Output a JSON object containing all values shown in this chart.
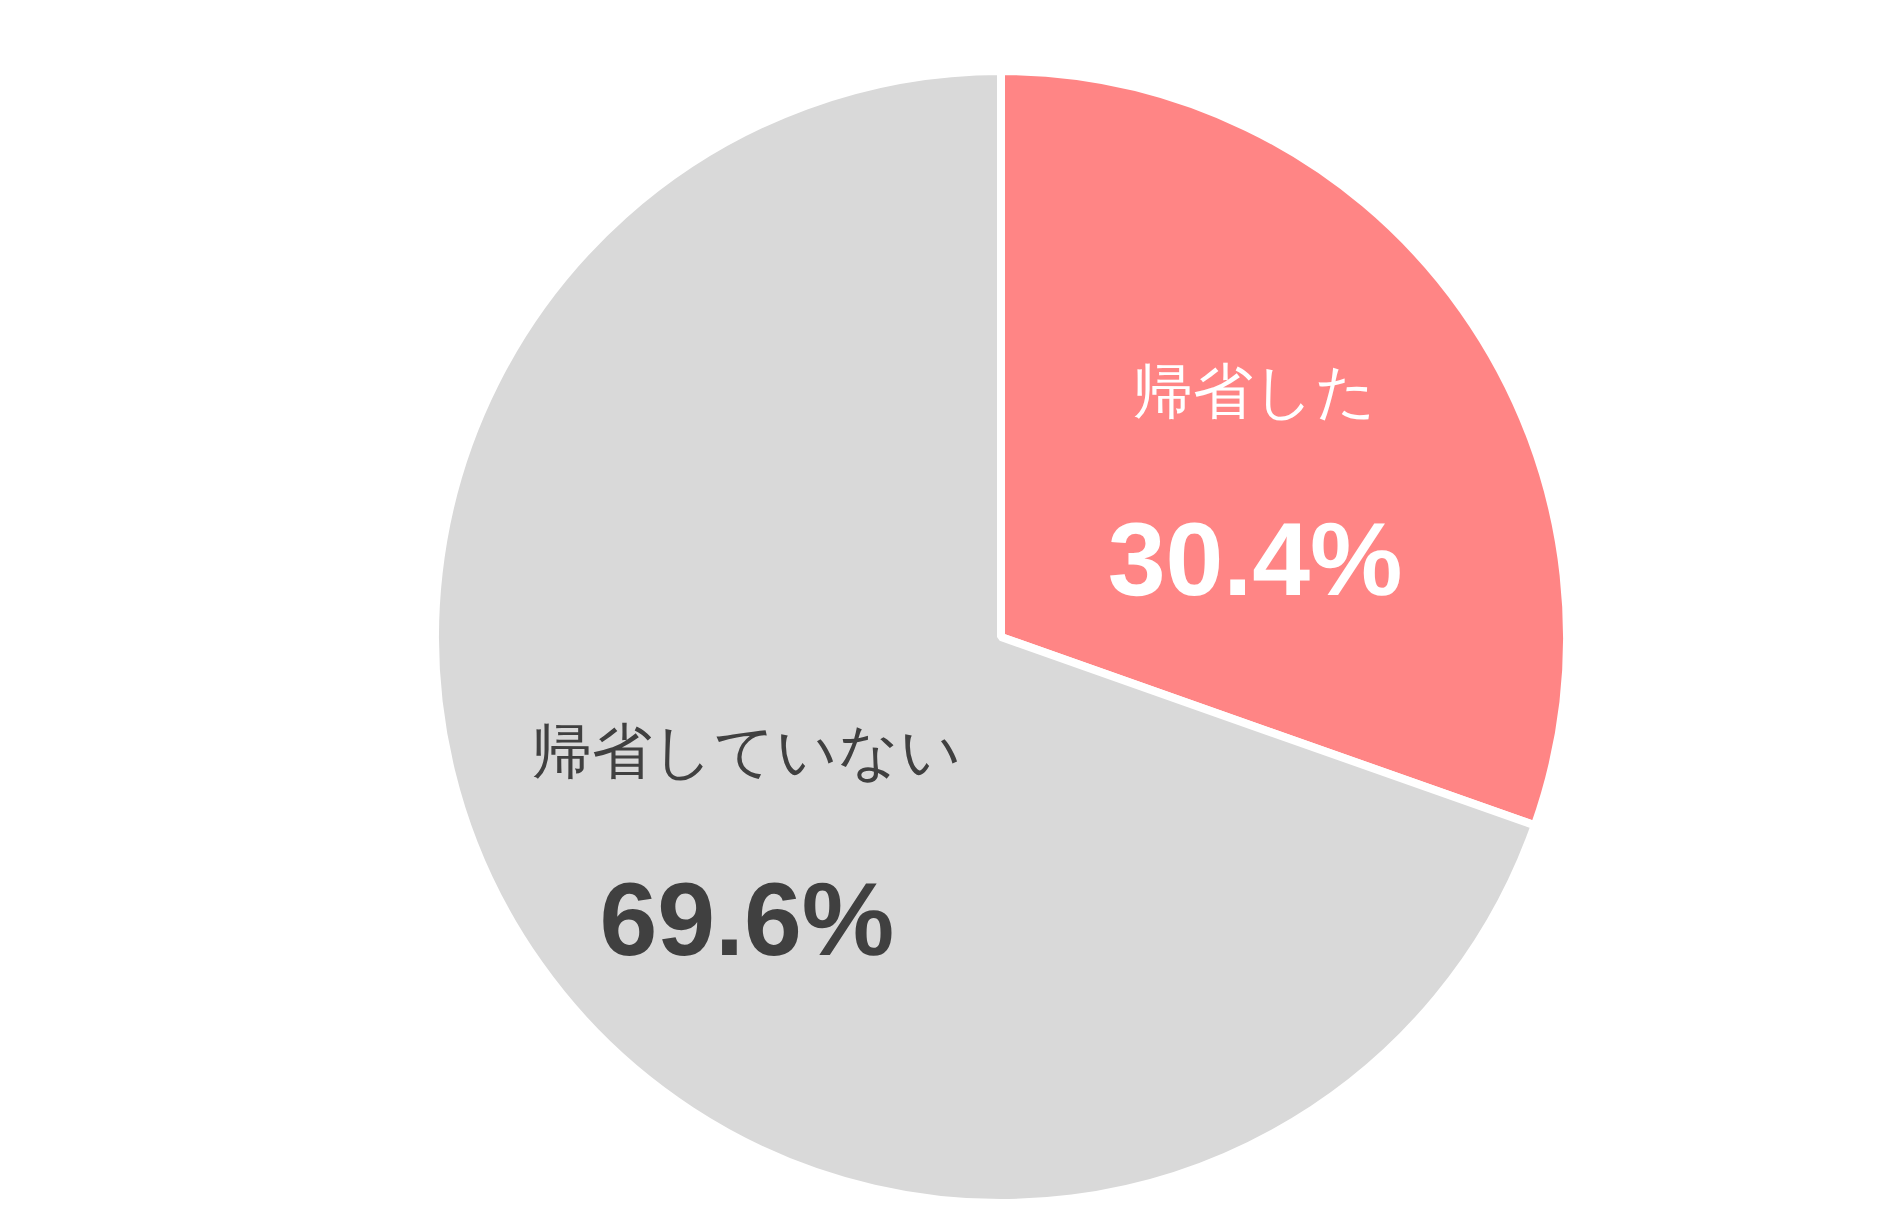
{
  "chart_data": {
    "type": "pie",
    "categories": [
      "帰省した",
      "帰省していない"
    ],
    "values": [
      30.4,
      69.6
    ],
    "colors": [
      "#ff8585",
      "#d9d9d9"
    ],
    "value_labels": [
      "30.4%",
      "69.6%"
    ]
  }
}
